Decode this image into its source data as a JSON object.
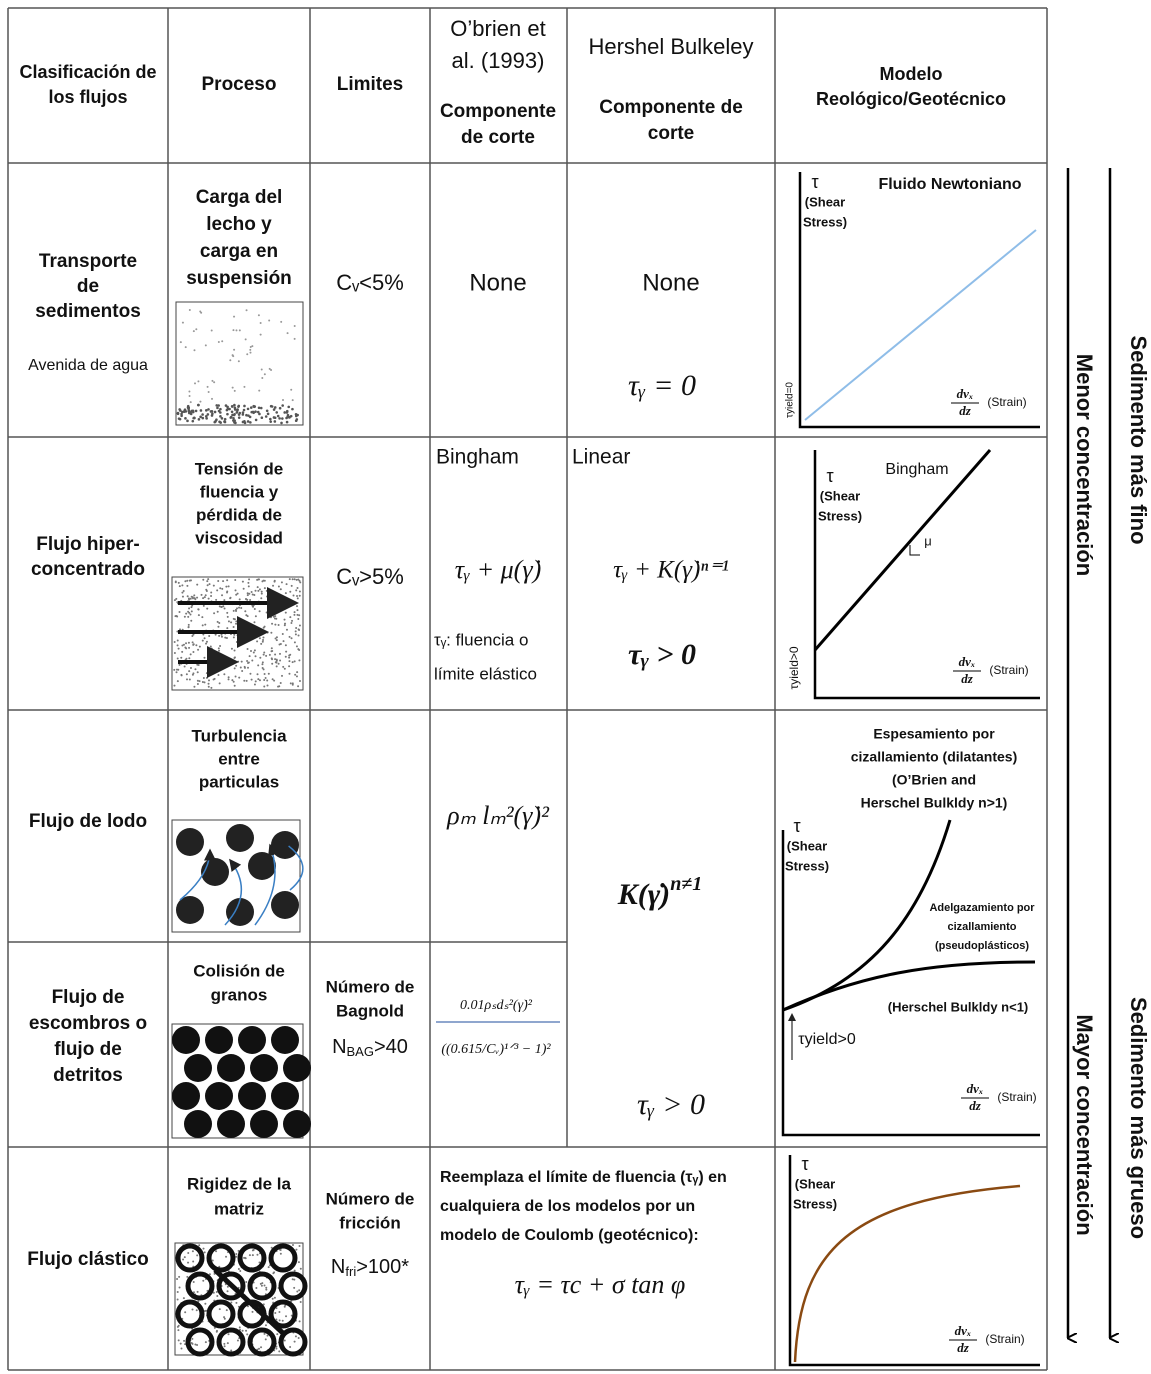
{
  "header": {
    "classification": [
      "Clasificación de",
      "los flujos"
    ],
    "process": "Proceso",
    "limits": "Limites",
    "obrien": {
      "title": [
        "O’brien et",
        "al. (1993)"
      ],
      "sub": [
        "Componente",
        "de corte"
      ]
    },
    "hershel": {
      "title": "Hershel Bulkeley",
      "sub": [
        "Componente de",
        "corte"
      ]
    },
    "model": [
      "Modelo",
      "Reológico/Geotécnico"
    ]
  },
  "rows": [
    {
      "classification": [
        "Transporte",
        "de",
        "sedimentos"
      ],
      "note": "Avenida de agua",
      "process": [
        "Carga del",
        "lecho y",
        "carga en",
        "suspensión"
      ],
      "limit": "Cᵥ<5%",
      "obrien": {
        "eq": "None"
      },
      "hershel": {
        "eq": "None",
        "eq2": "τᵧ = 0"
      },
      "graph": {
        "title": "Fluido Newtoniano",
        "y_label": [
          "τ",
          "(Shear",
          "Stress)"
        ],
        "x_label": {
          "top": "dvₓ",
          "bottom": "dz",
          "text": "(Strain)"
        },
        "yield": "τyield=0"
      }
    },
    {
      "classification": [
        "Flujo hiper-",
        "concentrado"
      ],
      "process": [
        "Tensión de",
        "fluencia y",
        "pérdida de",
        "viscosidad"
      ],
      "limit": "Cᵥ>5%",
      "obrien": {
        "title": "Bingham",
        "eq": "τᵧ + μ(γ̇)",
        "note": [
          "τᵧ: fluencia o",
          "límite elástico"
        ]
      },
      "hershel": {
        "title": "Linear",
        "eq": "τᵧ + K(γ̇)ⁿ⁼¹",
        "eq2": "τᵧ > 0"
      },
      "graph": {
        "title": "Bingham",
        "y_label": [
          "τ",
          "(Shear",
          "Stress)"
        ],
        "slope": "μ",
        "x_label": {
          "top": "dvₓ",
          "bottom": "dz",
          "text": "(Strain)"
        },
        "yield": "τyield>0"
      }
    },
    {
      "classification": [
        "Flujo de lodo"
      ],
      "process": [
        "Turbulencia",
        "entre",
        "particulas"
      ],
      "obrien": {
        "eq": "ρₘ lₘ²(γ̇)²"
      }
    },
    {
      "classification": [
        "Flujo de",
        "escombros o",
        "flujo de",
        "detritos"
      ],
      "process": [
        "Colisión de",
        "granos"
      ],
      "limit": [
        "Número de",
        "Bagnold"
      ],
      "limit2": {
        "symbol": "N",
        "sub": "BAG",
        "rest": ">40"
      },
      "obrien": {
        "numerator": "0.01ρₛdₛ²(γ̇)²",
        "denominator": "((0.615/Cᵥ)¹ᐟ³ − 1)²"
      }
    },
    {
      "classification": [
        "Flujo clástico"
      ],
      "process": [
        "Rigidez de la",
        "matriz"
      ],
      "limit": [
        "Número de",
        "fricción"
      ],
      "limit2": {
        "symbol": "N",
        "sub": "fri",
        "rest": ">100*"
      },
      "obrien": {
        "text": [
          "Reemplaza el límite de fluencia (τᵧ) en",
          "cualquiera de los modelos por un",
          "modelo de Coulomb (geotécnico):"
        ],
        "eq": "τᵧ = τc + σ tan φ"
      },
      "graph": {
        "y_label": [
          "τ",
          "(Shear",
          "Stress)"
        ],
        "x_label": {
          "top": "dvₓ",
          "bottom": "dz",
          "text": "(Strain)"
        }
      }
    }
  ],
  "merged": {
    "hershel": {
      "base": "K(γ̇)",
      "sup": "n≠1",
      "eq2": "τᵧ > 0"
    },
    "graph": {
      "title": [
        "Espesamiento por",
        "cizallamiento (dilatantes)",
        "(O’Brien and",
        "Herschel Bulkldy n>1)"
      ],
      "y_label": [
        "τ",
        "(Shear",
        "Stress)"
      ],
      "thinning": [
        "Adelgazamiento por",
        "cizallamiento",
        "(pseudoplásticos)"
      ],
      "hb": "(Herschel Bulkldy n<1)",
      "yield": "τyield>0",
      "x_label": {
        "top": "dvₓ",
        "bottom": "dz",
        "text": "(Strain)"
      }
    }
  },
  "side": {
    "finer": "Sedimento más fino",
    "coarser": "Sedimento más grueso",
    "less": "Menor concentración",
    "more": "Mayor concentración"
  }
}
